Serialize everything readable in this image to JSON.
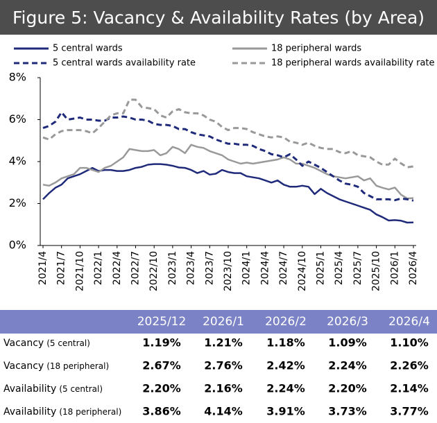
{
  "chart_data": {
    "type": "line",
    "title": "Figure 5: Vacancy & Availability Rates (by Area)",
    "categories": [
      "2021/4",
      null,
      null,
      "2021/7",
      null,
      null,
      "2021/10",
      null,
      null,
      "2022/1",
      null,
      null,
      "2022/4",
      null,
      null,
      "2022/7",
      null,
      null,
      "2022/10",
      null,
      null,
      "2023/1",
      null,
      null,
      "2023/4",
      null,
      null,
      "2023/7",
      null,
      null,
      "2023/10",
      null,
      null,
      "2024/1",
      null,
      null,
      "2024/4",
      null,
      null,
      "2024/7",
      null,
      null,
      "2024/10",
      null,
      null,
      "2025/1",
      null,
      null,
      "2025/4",
      null,
      null,
      "2025/7",
      null,
      null,
      "2025/10",
      null,
      null,
      "2026/1",
      null,
      null,
      "2026/4"
    ],
    "ylim": [
      0,
      8
    ],
    "yticks": [
      {
        "value": 0,
        "label": "0%"
      },
      {
        "value": 2,
        "label": "2%"
      },
      {
        "value": 4,
        "label": "4%"
      },
      {
        "value": 6,
        "label": "6%"
      },
      {
        "value": 8,
        "label": "8%"
      }
    ],
    "series": [
      {
        "name": "5 central wards",
        "color": "#1f2a7a",
        "style": "solid",
        "values": [
          2.2,
          2.5,
          2.75,
          2.9,
          3.2,
          3.3,
          3.4,
          3.55,
          3.7,
          3.55,
          3.6,
          3.6,
          3.55,
          3.55,
          3.6,
          3.7,
          3.75,
          3.85,
          3.88,
          3.88,
          3.85,
          3.8,
          3.72,
          3.7,
          3.6,
          3.45,
          3.55,
          3.38,
          3.42,
          3.6,
          3.5,
          3.45,
          3.45,
          3.3,
          3.25,
          3.2,
          3.1,
          3.0,
          3.1,
          2.9,
          2.8,
          2.8,
          2.85,
          2.8,
          2.45,
          2.7,
          2.5,
          2.35,
          2.2,
          2.1,
          2.0,
          1.9,
          1.8,
          1.7,
          1.48,
          1.35,
          1.19,
          1.21,
          1.18,
          1.09,
          1.1
        ]
      },
      {
        "name": "18 peripheral wards",
        "color": "#999999",
        "style": "solid",
        "values": [
          2.9,
          2.85,
          3.0,
          3.2,
          3.3,
          3.4,
          3.7,
          3.7,
          3.6,
          3.5,
          3.7,
          3.8,
          4.0,
          4.2,
          4.6,
          4.55,
          4.5,
          4.5,
          4.55,
          4.3,
          4.4,
          4.7,
          4.6,
          4.4,
          4.8,
          4.7,
          4.65,
          4.5,
          4.4,
          4.3,
          4.1,
          4.0,
          3.9,
          3.95,
          3.9,
          3.95,
          4.0,
          4.05,
          4.1,
          4.2,
          4.1,
          3.9,
          3.9,
          3.8,
          3.7,
          3.55,
          3.4,
          3.3,
          3.25,
          3.2,
          3.25,
          3.3,
          3.1,
          3.2,
          2.85,
          2.75,
          2.67,
          2.76,
          2.42,
          2.24,
          2.26
        ]
      },
      {
        "name": "5 central wards availability rate",
        "color": "#1f2a7a",
        "style": "dashed",
        "values": [
          5.6,
          5.7,
          5.9,
          6.35,
          6.0,
          6.05,
          6.1,
          6.0,
          6.0,
          5.95,
          5.95,
          6.1,
          6.1,
          6.15,
          6.1,
          6.0,
          6.0,
          5.95,
          5.8,
          5.75,
          5.75,
          5.7,
          5.55,
          5.55,
          5.4,
          5.3,
          5.25,
          5.2,
          5.05,
          4.95,
          4.85,
          4.85,
          4.8,
          4.8,
          4.75,
          4.6,
          4.5,
          4.35,
          4.3,
          4.2,
          4.35,
          4.1,
          3.8,
          4.0,
          3.85,
          3.7,
          3.5,
          3.3,
          3.1,
          2.95,
          2.9,
          2.8,
          2.5,
          2.35,
          2.2,
          2.2,
          2.2,
          2.16,
          2.24,
          2.2,
          2.14
        ]
      },
      {
        "name": "18 peripheral wards availability rate",
        "color": "#999999",
        "style": "dashed",
        "values": [
          5.15,
          5.05,
          5.3,
          5.45,
          5.5,
          5.5,
          5.5,
          5.45,
          5.35,
          5.6,
          5.9,
          6.2,
          6.3,
          6.3,
          6.95,
          6.95,
          6.6,
          6.55,
          6.5,
          6.2,
          6.1,
          6.4,
          6.5,
          6.35,
          6.3,
          6.3,
          6.2,
          6.0,
          5.9,
          5.65,
          5.5,
          5.6,
          5.6,
          5.55,
          5.4,
          5.3,
          5.2,
          5.15,
          5.2,
          5.15,
          4.95,
          4.9,
          4.8,
          4.9,
          4.75,
          4.65,
          4.6,
          4.6,
          4.45,
          4.4,
          4.5,
          4.3,
          4.25,
          4.2,
          4.0,
          3.85,
          3.86,
          4.14,
          3.91,
          3.73,
          3.77
        ]
      }
    ]
  },
  "table": {
    "columns": [
      "2025/12",
      "2026/1",
      "2026/2",
      "2026/3",
      "2026/4"
    ],
    "rows": [
      {
        "label": "Vacancy",
        "qualifier": "(5 central)",
        "values": [
          "1.19%",
          "1.21%",
          "1.18%",
          "1.09%",
          "1.10%"
        ]
      },
      {
        "label": "Vacancy",
        "qualifier": "(18 peripheral)",
        "values": [
          "2.67%",
          "2.76%",
          "2.42%",
          "2.24%",
          "2.26%"
        ]
      },
      {
        "label": "Availability",
        "qualifier": "(5 central)",
        "values": [
          "2.20%",
          "2.16%",
          "2.24%",
          "2.20%",
          "2.14%"
        ]
      },
      {
        "label": "Availability",
        "qualifier": "(18 peripheral)",
        "values": [
          "3.86%",
          "4.14%",
          "3.91%",
          "3.73%",
          "3.77%"
        ]
      }
    ]
  }
}
